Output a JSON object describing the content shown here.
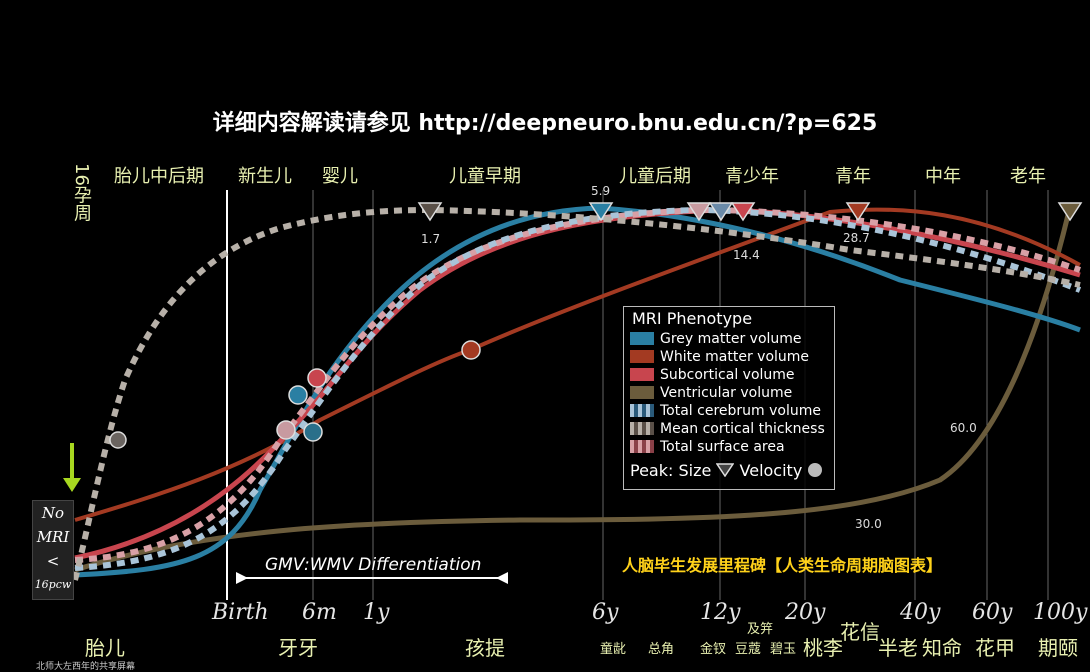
{
  "header": {
    "title": "详细内容解读请参见 http://deepneuro.bnu.edu.cn/?p=625"
  },
  "stages": [
    "胎儿中后期",
    "新生儿",
    "婴儿",
    "儿童早期",
    "儿童后期",
    "青少年",
    "青年",
    "中年",
    "老年"
  ],
  "left_note": "16孕周",
  "no_mri": {
    "line1": "No",
    "line2": "MRI",
    "line3": "<",
    "line4": "16pcw"
  },
  "bottom_cn": {
    "fetal": "胎儿",
    "babble": "牙牙",
    "toddler": "孩提",
    "c6": "童龀",
    "c8": "总角",
    "c12": "金钗",
    "c13": "豆蔻",
    "c15": "及笄",
    "c16": "碧玉",
    "c20": "桃李",
    "c24": "花信",
    "c40": "半老",
    "c50": "知命",
    "c60": "花甲",
    "c100": "期颐"
  },
  "gmv_label": "GMV:WMV Differentiation",
  "subtitle_cn": "人脑毕生发展里程碑【人类生命周期脑图表】",
  "caption": "北师大左西年的共享屏幕",
  "colors": {
    "grey_matter": "#2a7fa3",
    "white_matter": "#a33a22",
    "subcortical": "#c8454e",
    "ventricular": "#6b5c3c",
    "total_cerebrum": "#a9c4d8",
    "cortical_thickness": "#b7b0a8",
    "surface_area": "#d8a0a6"
  },
  "chart_data": {
    "type": "line",
    "x_scale": "log (post-conception age)",
    "x_ticks": [
      "Birth",
      "6m",
      "1y",
      "6y",
      "12y",
      "20y",
      "40y",
      "60y",
      "100y"
    ],
    "legend": {
      "title": "MRI Phenotype",
      "entries": [
        "Grey matter volume",
        "White matter volume",
        "Subcortical volume",
        "Ventricular volume",
        "Total cerebrum volume",
        "Mean cortical thickness",
        "Total surface area"
      ],
      "peak_prefix": "Peak:",
      "peak_size": "Size",
      "peak_velocity": "Velocity"
    },
    "peak_labels": [
      "1.7",
      "5.9",
      "14.4",
      "28.7",
      "60.0",
      "30.0"
    ],
    "series": [
      {
        "name": "Grey matter volume",
        "peak_size_age": "5.9"
      },
      {
        "name": "White matter volume",
        "peak_size_age": "28.7"
      },
      {
        "name": "Subcortical volume",
        "peak_size_age": "14.4"
      },
      {
        "name": "Ventricular volume"
      },
      {
        "name": "Total cerebrum volume",
        "peak_size_age": "12y"
      },
      {
        "name": "Mean cortical thickness",
        "peak_size_age": "1.7"
      },
      {
        "name": "Total surface area",
        "peak_size_age": "12y"
      }
    ]
  }
}
